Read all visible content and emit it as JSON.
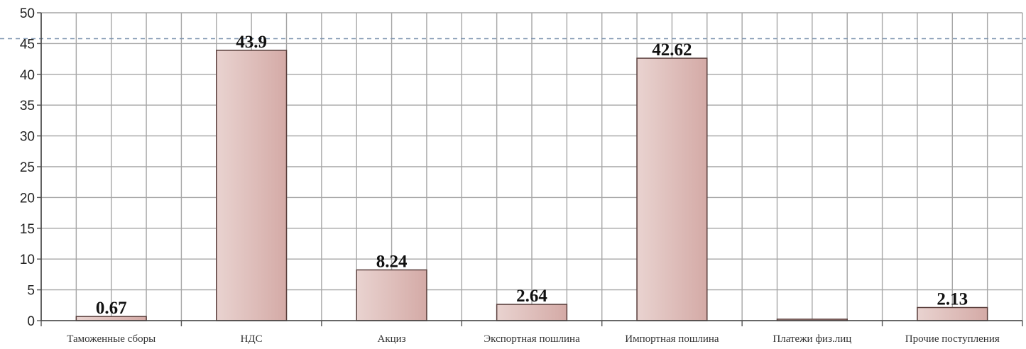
{
  "chart_data": {
    "type": "bar",
    "categories": [
      "Таможенные сборы",
      "НДС",
      "Акциз",
      "Экспортная пошлина",
      "Импортная пошлина",
      "Платежи физ.лиц",
      "Прочие поступления"
    ],
    "values": [
      0.67,
      43.9,
      8.24,
      2.64,
      42.62,
      0.0,
      2.13
    ],
    "data_labels": [
      "0.67",
      "43.9",
      "8.24",
      "2.64",
      "42.62",
      "",
      "2.13"
    ],
    "ylim": [
      0,
      50
    ],
    "y_ticks": [
      0,
      5,
      10,
      15,
      20,
      25,
      30,
      35,
      40,
      45,
      50
    ],
    "grid": true,
    "reference_line_value": 45.8,
    "colors": {
      "bar_fill_start": "#e9d3d0",
      "bar_fill_end": "#d4aaa6",
      "bar_stroke": "#5a3f3c",
      "grid": "#a6a6a6",
      "reference_line": "#7f95b0"
    }
  }
}
